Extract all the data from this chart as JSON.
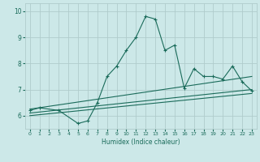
{
  "xlabel": "Humidex (Indice chaleur)",
  "ylabel": "",
  "xlim": [
    -0.5,
    23.5
  ],
  "ylim": [
    5.5,
    10.3
  ],
  "yticks": [
    6,
    7,
    8,
    9,
    10
  ],
  "xticks": [
    0,
    1,
    2,
    3,
    4,
    5,
    6,
    7,
    8,
    9,
    10,
    11,
    12,
    13,
    14,
    15,
    16,
    17,
    18,
    19,
    20,
    21,
    22,
    23
  ],
  "bg_color": "#cce8e8",
  "grid_color": "#b0cccc",
  "line_color": "#1a6b5a",
  "lines": [
    {
      "x": [
        0,
        1,
        3,
        5,
        6,
        7,
        8,
        9,
        10,
        11,
        12,
        13,
        14,
        15,
        16,
        17,
        18,
        19,
        20,
        21,
        22,
        23
      ],
      "y": [
        6.2,
        6.3,
        6.2,
        5.7,
        5.8,
        6.5,
        7.5,
        7.9,
        8.5,
        9.0,
        9.8,
        9.7,
        8.5,
        8.7,
        7.05,
        7.8,
        7.5,
        7.5,
        7.4,
        7.9,
        7.3,
        6.95
      ],
      "marker": "+"
    },
    {
      "x": [
        0,
        23
      ],
      "y": [
        6.25,
        7.5
      ],
      "marker": null
    },
    {
      "x": [
        0,
        23
      ],
      "y": [
        6.1,
        7.0
      ],
      "marker": null
    },
    {
      "x": [
        0,
        23
      ],
      "y": [
        6.0,
        6.85
      ],
      "marker": null
    }
  ]
}
